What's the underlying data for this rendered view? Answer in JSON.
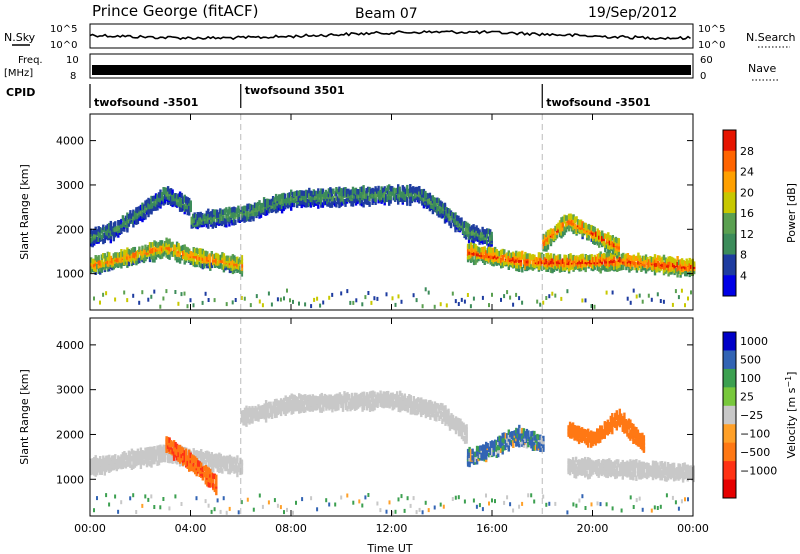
{
  "header": {
    "station": "Prince George (fitACF)",
    "beam": "Beam 07",
    "date": "19/Sep/2012"
  },
  "strips": {
    "nsky_label": "N.Sky",
    "nsky_ticks": [
      "10^5",
      "10^0"
    ],
    "nsearch_label": "N.Search",
    "nsearch_ticks": [
      "10^5",
      "10^0"
    ],
    "freq_label_1": "Freq.",
    "freq_label_2": "[MHz]",
    "freq_ticks": [
      "10",
      "8"
    ],
    "nave_label": "Nave",
    "nave_ticks": [
      "60",
      "0"
    ],
    "cpid_label": "CPID",
    "cpid_segments": [
      {
        "label": "twofsound -3501",
        "start_hour": 0
      },
      {
        "label": "twofsound 3501",
        "start_hour": 6
      },
      {
        "label": "twofsound -3501",
        "start_hour": 18
      }
    ]
  },
  "colors": {
    "power": [
      "#0000e6",
      "#1e3ca0",
      "#3c8c5a",
      "#5aa050",
      "#c8c800",
      "#ffa000",
      "#ff6400",
      "#e61400"
    ],
    "velocity": [
      "#0000c8",
      "#3264b4",
      "#3ca050",
      "#78c83c",
      "#c8c8c8",
      "#ffa028",
      "#ff7814",
      "#ff3214",
      "#e60000"
    ]
  },
  "chart_data": [
    {
      "type": "heatmap",
      "ylabel": "Slant Range [km]",
      "xlabel": "",
      "xlim": [
        "00:00",
        "24:00"
      ],
      "ylim": [
        180,
        4600
      ],
      "yticks": [
        1000,
        2000,
        3000,
        4000
      ],
      "colorbar": {
        "label": "Power [dB]",
        "ticks": [
          "4",
          "8",
          "12",
          "16",
          "20",
          "24",
          "28"
        ],
        "range": [
          0,
          30
        ]
      },
      "bands": [
        {
          "time": [
            0,
            2,
            3,
            4,
            5,
            6
          ],
          "range": [
            1200,
            1450,
            1600,
            1400,
            1300,
            1200
          ],
          "value": 20
        },
        {
          "time": [
            0,
            1,
            2,
            3,
            4
          ],
          "range": [
            1850,
            2000,
            2400,
            2800,
            2500
          ],
          "value": 9
        },
        {
          "time": [
            4,
            6,
            8,
            10,
            12,
            13,
            14,
            15,
            16
          ],
          "range": [
            2200,
            2350,
            2700,
            2750,
            2800,
            2800,
            2450,
            1950,
            1800
          ],
          "value": 10
        },
        {
          "time": [
            15,
            17,
            19,
            21,
            22,
            24
          ],
          "range": [
            1500,
            1300,
            1250,
            1300,
            1250,
            1150
          ],
          "value": 24
        },
        {
          "time": [
            18,
            19,
            20,
            21
          ],
          "range": [
            1700,
            2200,
            1900,
            1600
          ],
          "value": 22
        }
      ]
    },
    {
      "type": "heatmap",
      "ylabel": "Slant Range [km]",
      "xlabel": "Time UT",
      "xticks": [
        "00:00",
        "04:00",
        "08:00",
        "12:00",
        "16:00",
        "20:00",
        "00:00"
      ],
      "xlim": [
        "00:00",
        "24:00"
      ],
      "ylim": [
        180,
        4600
      ],
      "yticks": [
        1000,
        2000,
        3000,
        4000
      ],
      "colorbar": {
        "label": "Velocity [m s^-1]",
        "ticks": [
          "1000",
          "500",
          "100",
          "25",
          "-25",
          "-100",
          "-500",
          "-1000"
        ],
        "range": [
          -1000,
          1000
        ]
      },
      "bands": [
        {
          "time": [
            0,
            2,
            3,
            5,
            6
          ],
          "range": [
            1300,
            1500,
            1600,
            1400,
            1300
          ],
          "value": 0
        },
        {
          "time": [
            6,
            8,
            10,
            12,
            14,
            15
          ],
          "range": [
            2400,
            2700,
            2750,
            2800,
            2500,
            2000
          ],
          "value": 0
        },
        {
          "time": [
            3,
            4,
            5
          ],
          "range": [
            1800,
            1400,
            900
          ],
          "value": -400
        },
        {
          "time": [
            15,
            16,
            17,
            18
          ],
          "range": [
            1500,
            1700,
            2000,
            1800
          ],
          "value": 150
        },
        {
          "time": [
            19,
            20,
            21,
            22
          ],
          "range": [
            2100,
            1900,
            2400,
            1800
          ],
          "value": -300
        },
        {
          "time": [
            19,
            21,
            23,
            24
          ],
          "range": [
            1300,
            1250,
            1200,
            1150
          ],
          "value": 0
        }
      ]
    }
  ]
}
